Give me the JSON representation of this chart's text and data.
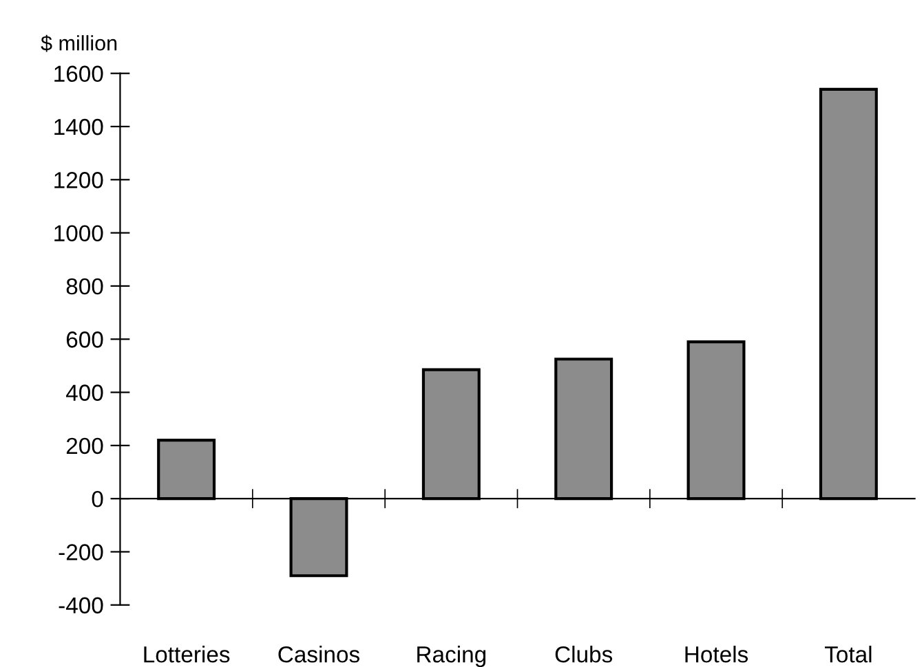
{
  "chart_data": {
    "type": "bar",
    "ylabel": "$ million",
    "categories": [
      "Lotteries",
      "Casinos",
      "Racing",
      "Clubs",
      "Hotels",
      "Total"
    ],
    "values": [
      220,
      -290,
      485,
      525,
      590,
      1540
    ],
    "color": "#8c8c8c",
    "ylim": [
      -400,
      1600
    ],
    "yticks": [
      -400,
      -200,
      0,
      200,
      400,
      600,
      800,
      1000,
      1200,
      1400,
      1600
    ]
  }
}
